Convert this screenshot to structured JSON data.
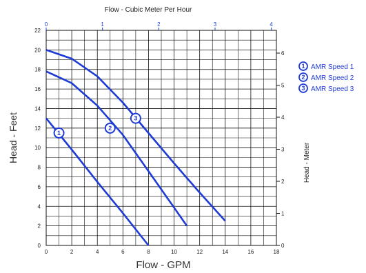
{
  "chart_data": {
    "type": "line",
    "top_axis_title": "Flow - Cubic Meter Per Hour",
    "xlabel": "Flow - GPM",
    "ylabel": "Head - Feet",
    "y2label": "Head - Meter",
    "xlim": [
      0,
      18
    ],
    "ylim": [
      0,
      22
    ],
    "x2lim": [
      0,
      4.09
    ],
    "y2lim": [
      0,
      6.71
    ],
    "x_ticks": [
      "0",
      "2",
      "4",
      "6",
      "8",
      "10",
      "12",
      "14",
      "16",
      "18"
    ],
    "y_ticks": [
      "0",
      "2",
      "4",
      "6",
      "8",
      "10",
      "12",
      "14",
      "16",
      "18",
      "20",
      "22"
    ],
    "x2_ticks": [
      "0",
      "1",
      "2",
      "3",
      "4"
    ],
    "y2_ticks": [
      "0",
      "1",
      "2",
      "3",
      "4",
      "5",
      "6"
    ],
    "grid": true,
    "legend_position": "right",
    "series_color": "#1f3bd6",
    "series": [
      {
        "name": "AMR Speed 1",
        "marker_label": "1",
        "marker_at": [
          1,
          11.5
        ],
        "x": [
          0,
          2,
          4,
          6,
          8
        ],
        "y": [
          13,
          9.8,
          6.5,
          3.3,
          0
        ]
      },
      {
        "name": "AMR Speed 2",
        "marker_label": "2",
        "marker_at": [
          5,
          12
        ],
        "x": [
          0,
          2,
          4,
          6,
          8,
          11
        ],
        "y": [
          17.8,
          16.6,
          14.3,
          11.3,
          7.6,
          2
        ]
      },
      {
        "name": "AMR Speed 3",
        "marker_label": "3",
        "marker_at": [
          7,
          13
        ],
        "x": [
          0,
          2,
          4,
          6,
          8,
          10,
          12,
          14
        ],
        "y": [
          20,
          19.1,
          17.3,
          14.6,
          11.5,
          8.4,
          5.4,
          2.5
        ]
      }
    ]
  }
}
